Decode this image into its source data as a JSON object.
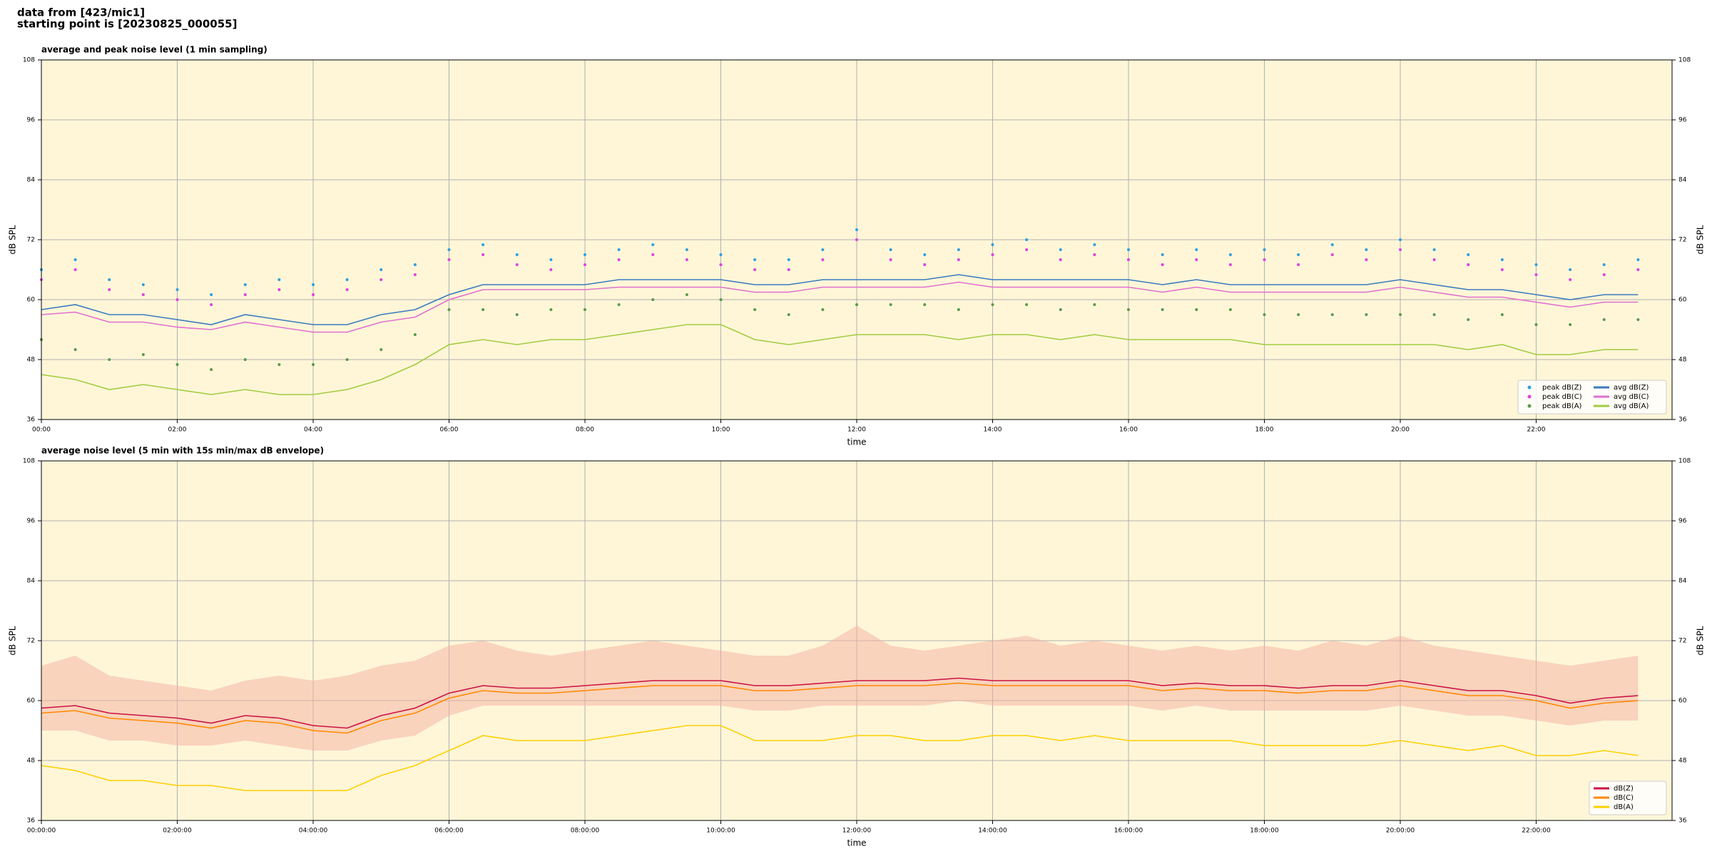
{
  "header": {
    "title": "data from [423/mic1]",
    "subtitle": "starting point is [20230825_000055]"
  },
  "chart_data": [
    {
      "type": "line",
      "title": "average and peak noise level (1 min sampling)",
      "xlabel": "time",
      "ylabel": "dB SPL",
      "background": "#fff6d8",
      "grid": true,
      "legend": "lower right",
      "legend_columns": 2,
      "xlim": [
        0,
        24
      ],
      "ylim": [
        36,
        108
      ],
      "xticks": [
        {
          "value": 0,
          "label": "00:00"
        },
        {
          "value": 2,
          "label": "02:00"
        },
        {
          "value": 4,
          "label": "04:00"
        },
        {
          "value": 6,
          "label": "06:00"
        },
        {
          "value": 8,
          "label": "08:00"
        },
        {
          "value": 10,
          "label": "10:00"
        },
        {
          "value": 12,
          "label": "12:00"
        },
        {
          "value": 14,
          "label": "14:00"
        },
        {
          "value": 16,
          "label": "16:00"
        },
        {
          "value": 18,
          "label": "18:00"
        },
        {
          "value": 20,
          "label": "20:00"
        },
        {
          "value": 22,
          "label": "22:00"
        }
      ],
      "yticks": [
        36,
        48,
        60,
        72,
        84,
        96,
        108
      ],
      "x": [
        0,
        0.5,
        1,
        1.5,
        2,
        2.5,
        3,
        3.5,
        4,
        4.5,
        5,
        5.5,
        6,
        6.5,
        7,
        7.5,
        8,
        8.5,
        9,
        9.5,
        10,
        10.5,
        11,
        11.5,
        12,
        12.5,
        13,
        13.5,
        14,
        14.5,
        15,
        15.5,
        16,
        16.5,
        17,
        17.5,
        18,
        18.5,
        19,
        19.5,
        20,
        20.5,
        21,
        21.5,
        22,
        22.5,
        23,
        23.5
      ],
      "series": [
        {
          "name": "peak dB(Z)",
          "mark": "dot",
          "color": "#2f9fe0",
          "values": [
            66,
            68,
            64,
            63,
            62,
            61,
            63,
            64,
            63,
            64,
            66,
            67,
            70,
            71,
            69,
            68,
            69,
            70,
            71,
            70,
            69,
            68,
            68,
            70,
            74,
            70,
            69,
            70,
            71,
            72,
            70,
            71,
            70,
            69,
            70,
            69,
            70,
            69,
            71,
            70,
            72,
            70,
            69,
            68,
            67,
            66,
            67,
            68
          ]
        },
        {
          "name": "peak dB(C)",
          "mark": "dot",
          "color": "#e040e0",
          "values": [
            64,
            66,
            62,
            61,
            60,
            59,
            61,
            62,
            61,
            62,
            64,
            65,
            68,
            69,
            67,
            66,
            67,
            68,
            69,
            68,
            67,
            66,
            66,
            68,
            72,
            68,
            67,
            68,
            69,
            70,
            68,
            69,
            68,
            67,
            68,
            67,
            68,
            67,
            69,
            68,
            70,
            68,
            67,
            66,
            65,
            64,
            65,
            66
          ]
        },
        {
          "name": "peak dB(A)",
          "mark": "dot",
          "color": "#5a9a4a",
          "values": [
            52,
            50,
            48,
            49,
            47,
            46,
            48,
            47,
            47,
            48,
            50,
            53,
            58,
            58,
            57,
            58,
            58,
            59,
            60,
            61,
            60,
            58,
            57,
            58,
            59,
            59,
            59,
            58,
            59,
            59,
            58,
            59,
            58,
            58,
            58,
            58,
            57,
            57,
            57,
            57,
            57,
            57,
            56,
            57,
            55,
            55,
            56,
            56
          ]
        },
        {
          "name": "avg dB(Z)",
          "mark": "line",
          "color": "#3a7abf",
          "values": [
            58,
            59,
            57,
            57,
            56,
            55,
            57,
            56,
            55,
            55,
            57,
            58,
            61,
            63,
            63,
            63,
            63,
            64,
            64,
            64,
            64,
            63,
            63,
            64,
            64,
            64,
            64,
            65,
            64,
            64,
            64,
            64,
            64,
            63,
            64,
            63,
            63,
            63,
            63,
            63,
            64,
            63,
            62,
            62,
            61,
            60,
            61,
            61
          ]
        },
        {
          "name": "avg dB(C)",
          "mark": "line",
          "color": "#e070d0",
          "values": [
            57,
            57.5,
            55.5,
            55.5,
            54.5,
            54,
            55.5,
            54.5,
            53.5,
            53.5,
            55.5,
            56.5,
            60,
            62,
            62,
            62,
            62,
            62.5,
            62.5,
            62.5,
            62.5,
            61.5,
            61.5,
            62.5,
            62.5,
            62.5,
            62.5,
            63.5,
            62.5,
            62.5,
            62.5,
            62.5,
            62.5,
            61.5,
            62.5,
            61.5,
            61.5,
            61.5,
            61.5,
            61.5,
            62.5,
            61.5,
            60.5,
            60.5,
            59.5,
            58.5,
            59.5,
            59.5
          ]
        },
        {
          "name": "avg dB(A)",
          "mark": "line",
          "color": "#a0cc40",
          "values": [
            45,
            44,
            42,
            43,
            42,
            41,
            42,
            41,
            41,
            42,
            44,
            47,
            51,
            52,
            51,
            52,
            52,
            53,
            54,
            55,
            55,
            52,
            51,
            52,
            53,
            53,
            53,
            52,
            53,
            53,
            52,
            53,
            52,
            52,
            52,
            52,
            51,
            51,
            51,
            51,
            51,
            51,
            50,
            51,
            49,
            49,
            50,
            50
          ]
        }
      ]
    },
    {
      "type": "line",
      "title": "average noise level (5 min with 15s min/max dB envelope)",
      "xlabel": "time",
      "ylabel": "dB SPL",
      "background": "#fff6d8",
      "grid": true,
      "legend": "lower right",
      "legend_columns": 1,
      "xlim": [
        0,
        24
      ],
      "ylim": [
        36,
        108
      ],
      "xticks": [
        {
          "value": 0,
          "label": "00:00:00"
        },
        {
          "value": 2,
          "label": "02:00:00"
        },
        {
          "value": 4,
          "label": "04:00:00"
        },
        {
          "value": 6,
          "label": "06:00:00"
        },
        {
          "value": 8,
          "label": "08:00:00"
        },
        {
          "value": 10,
          "label": "10:00:00"
        },
        {
          "value": 12,
          "label": "12:00:00"
        },
        {
          "value": 14,
          "label": "14:00:00"
        },
        {
          "value": 16,
          "label": "16:00:00"
        },
        {
          "value": 18,
          "label": "18:00:00"
        },
        {
          "value": 20,
          "label": "20:00:00"
        },
        {
          "value": 22,
          "label": "22:00:00"
        }
      ],
      "yticks": [
        36,
        48,
        60,
        72,
        84,
        96,
        108
      ],
      "x": [
        0,
        0.5,
        1,
        1.5,
        2,
        2.5,
        3,
        3.5,
        4,
        4.5,
        5,
        5.5,
        6,
        6.5,
        7,
        7.5,
        8,
        8.5,
        9,
        9.5,
        10,
        10.5,
        11,
        11.5,
        12,
        12.5,
        13,
        13.5,
        14,
        14.5,
        15,
        15.5,
        16,
        16.5,
        17,
        17.5,
        18,
        18.5,
        19,
        19.5,
        20,
        20.5,
        21,
        21.5,
        22,
        22.5,
        23,
        23.5
      ],
      "envelope": {
        "color": "#f4b0a0",
        "high": [
          67,
          69,
          65,
          64,
          63,
          62,
          64,
          65,
          64,
          65,
          67,
          68,
          71,
          72,
          70,
          69,
          70,
          71,
          72,
          71,
          70,
          69,
          69,
          71,
          75,
          71,
          70,
          71,
          72,
          73,
          71,
          72,
          71,
          70,
          71,
          70,
          71,
          70,
          72,
          71,
          73,
          71,
          70,
          69,
          68,
          67,
          68,
          69
        ],
        "low": [
          54,
          54,
          52,
          52,
          51,
          51,
          52,
          51,
          50,
          50,
          52,
          53,
          57,
          59,
          59,
          59,
          59,
          59,
          59,
          59,
          59,
          58,
          58,
          59,
          59,
          59,
          59,
          60,
          59,
          59,
          59,
          59,
          59,
          58,
          59,
          58,
          58,
          58,
          58,
          58,
          59,
          58,
          57,
          57,
          56,
          55,
          56,
          56
        ]
      },
      "series": [
        {
          "name": "dB(Z)",
          "mark": "line",
          "color": "#cc1144",
          "values": [
            58.5,
            59,
            57.5,
            57,
            56.5,
            55.5,
            57,
            56.5,
            55,
            54.5,
            57,
            58.5,
            61.5,
            63,
            62.5,
            62.5,
            63,
            63.5,
            64,
            64,
            64,
            63,
            63,
            63.5,
            64,
            64,
            64,
            64.5,
            64,
            64,
            64,
            64,
            64,
            63,
            63.5,
            63,
            63,
            62.5,
            63,
            63,
            64,
            63,
            62,
            62,
            61,
            59.5,
            60.5,
            61
          ]
        },
        {
          "name": "dB(C)",
          "mark": "line",
          "color": "#ff8800",
          "values": [
            57.5,
            58,
            56.5,
            56,
            55.5,
            54.5,
            56,
            55.5,
            54,
            53.5,
            56,
            57.5,
            60.5,
            62,
            61.5,
            61.5,
            62,
            62.5,
            63,
            63,
            63,
            62,
            62,
            62.5,
            63,
            63,
            63,
            63.5,
            63,
            63,
            63,
            63,
            63,
            62,
            62.5,
            62,
            62,
            61.5,
            62,
            62,
            63,
            62,
            61,
            61,
            60,
            58.5,
            59.5,
            60
          ]
        },
        {
          "name": "dB(A)",
          "mark": "line",
          "color": "#ffd000",
          "values": [
            47,
            46,
            44,
            44,
            43,
            43,
            42,
            42,
            42,
            42,
            45,
            47,
            50,
            53,
            52,
            52,
            52,
            53,
            54,
            55,
            55,
            52,
            52,
            52,
            53,
            53,
            52,
            52,
            53,
            53,
            52,
            53,
            52,
            52,
            52,
            52,
            51,
            51,
            51,
            51,
            52,
            51,
            50,
            51,
            49,
            49,
            50,
            49
          ]
        }
      ]
    }
  ]
}
